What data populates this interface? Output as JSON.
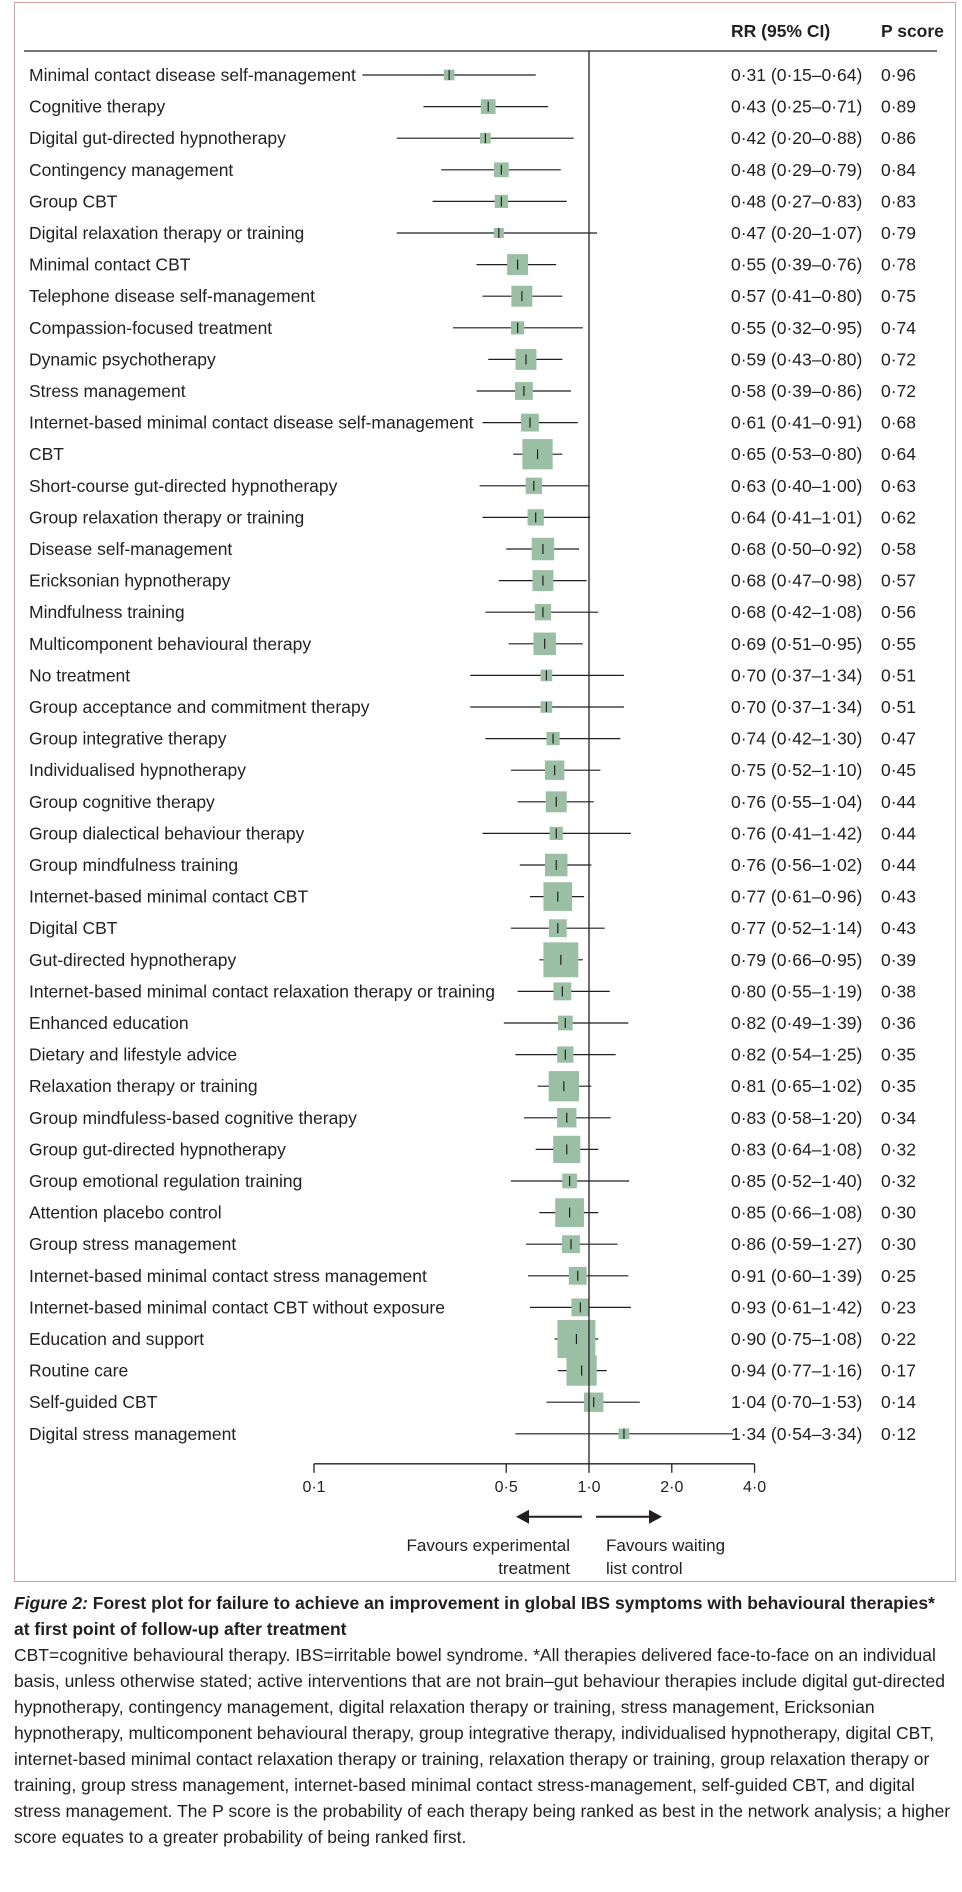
{
  "header": {
    "rr_label": "RR (95% CI)",
    "p_label": "P score"
  },
  "chart_data": {
    "type": "forest",
    "x_scale": "log",
    "reference_line": 1.0,
    "xticks": [
      {
        "value": 0.1,
        "label": "0·1"
      },
      {
        "value": 0.5,
        "label": "0·5"
      },
      {
        "value": 1.0,
        "label": "1·0"
      },
      {
        "value": 2.0,
        "label": "2·0"
      },
      {
        "value": 4.0,
        "label": "4·0"
      }
    ],
    "marker_color": "#9bbfa4",
    "favours_left": [
      "Favours experimental",
      "treatment"
    ],
    "favours_right": [
      "Favours waiting",
      "list control"
    ],
    "rows": [
      {
        "name": "Minimal contact disease self-management",
        "rr": 0.31,
        "lo": 0.15,
        "hi": 0.64,
        "rr_text": "0·31 (0·15–0·64)",
        "p_text": "0·96",
        "weight": 0.12
      },
      {
        "name": "Cognitive therapy",
        "rr": 0.43,
        "lo": 0.25,
        "hi": 0.71,
        "rr_text": "0·43 (0·25–0·71)",
        "p_text": "0·89",
        "weight": 0.25
      },
      {
        "name": "Digital gut-directed hypnotherapy",
        "rr": 0.42,
        "lo": 0.2,
        "hi": 0.88,
        "rr_text": "0·42 (0·20–0·88)",
        "p_text": "0·86",
        "weight": 0.12
      },
      {
        "name": "Contingency management",
        "rr": 0.48,
        "lo": 0.29,
        "hi": 0.79,
        "rr_text": "0·48 (0·29–0·79)",
        "p_text": "0·84",
        "weight": 0.25
      },
      {
        "name": "Group CBT",
        "rr": 0.48,
        "lo": 0.27,
        "hi": 0.83,
        "rr_text": "0·48 (0·27–0·83)",
        "p_text": "0·83",
        "weight": 0.2
      },
      {
        "name": "Digital relaxation therapy or training",
        "rr": 0.47,
        "lo": 0.2,
        "hi": 1.07,
        "rr_text": "0·47 (0·20–1·07)",
        "p_text": "0·79",
        "weight": 0.1
      },
      {
        "name": "Minimal contact CBT",
        "rr": 0.55,
        "lo": 0.39,
        "hi": 0.76,
        "rr_text": "0·55 (0·39–0·76)",
        "p_text": "0·78",
        "weight": 0.45
      },
      {
        "name": "Telephone disease self-management",
        "rr": 0.57,
        "lo": 0.41,
        "hi": 0.8,
        "rr_text": "0·57 (0·41–0·80)",
        "p_text": "0·75",
        "weight": 0.45
      },
      {
        "name": "Compassion-focused treatment",
        "rr": 0.55,
        "lo": 0.32,
        "hi": 0.95,
        "rr_text": "0·55 (0·32–0·95)",
        "p_text": "0·74",
        "weight": 0.2
      },
      {
        "name": "Dynamic psychotherapy",
        "rr": 0.59,
        "lo": 0.43,
        "hi": 0.8,
        "rr_text": "0·59 (0·43–0·80)",
        "p_text": "0·72",
        "weight": 0.45
      },
      {
        "name": "Stress management",
        "rr": 0.58,
        "lo": 0.39,
        "hi": 0.86,
        "rr_text": "0·58 (0·39–0·86)",
        "p_text": "0·72",
        "weight": 0.35
      },
      {
        "name": "Internet-based minimal contact disease self-management",
        "rr": 0.61,
        "lo": 0.41,
        "hi": 0.91,
        "rr_text": "0·61 (0·41–0·91)",
        "p_text": "0·68",
        "weight": 0.35
      },
      {
        "name": "CBT",
        "rr": 0.65,
        "lo": 0.53,
        "hi": 0.8,
        "rr_text": "0·65 (0·53–0·80)",
        "p_text": "0·64",
        "weight": 0.75
      },
      {
        "name": "Short-course gut-directed hypnotherapy",
        "rr": 0.63,
        "lo": 0.4,
        "hi": 1.0,
        "rr_text": "0·63 (0·40–1·00)",
        "p_text": "0·63",
        "weight": 0.3
      },
      {
        "name": "Group relaxation therapy or training",
        "rr": 0.64,
        "lo": 0.41,
        "hi": 1.01,
        "rr_text": "0·64 (0·41–1·01)",
        "p_text": "0·62",
        "weight": 0.3
      },
      {
        "name": "Disease self-management",
        "rr": 0.68,
        "lo": 0.5,
        "hi": 0.92,
        "rr_text": "0·68 (0·50–0·92)",
        "p_text": "0·58",
        "weight": 0.5
      },
      {
        "name": "Ericksonian hypnotherapy",
        "rr": 0.68,
        "lo": 0.47,
        "hi": 0.98,
        "rr_text": "0·68 (0·47–0·98)",
        "p_text": "0·57",
        "weight": 0.45
      },
      {
        "name": "Mindfulness training",
        "rr": 0.68,
        "lo": 0.42,
        "hi": 1.08,
        "rr_text": "0·68 (0·42–1·08)",
        "p_text": "0·56",
        "weight": 0.3
      },
      {
        "name": "Multicomponent behavioural therapy",
        "rr": 0.69,
        "lo": 0.51,
        "hi": 0.95,
        "rr_text": "0·69 (0·51–0·95)",
        "p_text": "0·55",
        "weight": 0.5
      },
      {
        "name": "No treatment",
        "rr": 0.7,
        "lo": 0.37,
        "hi": 1.34,
        "rr_text": "0·70 (0·37–1·34)",
        "p_text": "0·51",
        "weight": 0.15
      },
      {
        "name": "Group acceptance and commitment therapy",
        "rr": 0.7,
        "lo": 0.37,
        "hi": 1.34,
        "rr_text": "0·70 (0·37–1·34)",
        "p_text": "0·51",
        "weight": 0.15
      },
      {
        "name": "Group integrative therapy",
        "rr": 0.74,
        "lo": 0.42,
        "hi": 1.3,
        "rr_text": "0·74 (0·42–1·30)",
        "p_text": "0·47",
        "weight": 0.2
      },
      {
        "name": "Individualised hypnotherapy",
        "rr": 0.75,
        "lo": 0.52,
        "hi": 1.1,
        "rr_text": "0·75 (0·52–1·10)",
        "p_text": "0·45",
        "weight": 0.4
      },
      {
        "name": "Group cognitive therapy",
        "rr": 0.76,
        "lo": 0.55,
        "hi": 1.04,
        "rr_text": "0·76 (0·55–1·04)",
        "p_text": "0·44",
        "weight": 0.45
      },
      {
        "name": "Group dialectical behaviour therapy",
        "rr": 0.76,
        "lo": 0.41,
        "hi": 1.42,
        "rr_text": "0·76 (0·41–1·42)",
        "p_text": "0·44",
        "weight": 0.2
      },
      {
        "name": "Group mindfulness training",
        "rr": 0.76,
        "lo": 0.56,
        "hi": 1.02,
        "rr_text": "0·76 (0·56–1·02)",
        "p_text": "0·44",
        "weight": 0.5
      },
      {
        "name": "Internet-based minimal contact CBT",
        "rr": 0.77,
        "lo": 0.61,
        "hi": 0.96,
        "rr_text": "0·77 (0·61–0·96)",
        "p_text": "0·43",
        "weight": 0.7
      },
      {
        "name": "Digital CBT",
        "rr": 0.77,
        "lo": 0.52,
        "hi": 1.14,
        "rr_text": "0·77 (0·52–1·14)",
        "p_text": "0·43",
        "weight": 0.35
      },
      {
        "name": "Gut-directed hypnotherapy",
        "rr": 0.79,
        "lo": 0.66,
        "hi": 0.95,
        "rr_text": "0·79 (0·66–0·95)",
        "p_text": "0·39",
        "weight": 0.9
      },
      {
        "name": "Internet-based minimal contact relaxation therapy or training",
        "rr": 0.8,
        "lo": 0.55,
        "hi": 1.19,
        "rr_text": "0·80 (0·55–1·19)",
        "p_text": "0·38",
        "weight": 0.35
      },
      {
        "name": "Enhanced education",
        "rr": 0.82,
        "lo": 0.49,
        "hi": 1.39,
        "rr_text": "0·82 (0·49–1·39)",
        "p_text": "0·36",
        "weight": 0.25
      },
      {
        "name": "Dietary and lifestyle advice",
        "rr": 0.82,
        "lo": 0.54,
        "hi": 1.25,
        "rr_text": "0·82 (0·54–1·25)",
        "p_text": "0·35",
        "weight": 0.3
      },
      {
        "name": "Relaxation therapy or training",
        "rr": 0.81,
        "lo": 0.65,
        "hi": 1.02,
        "rr_text": "0·81 (0·65–1·02)",
        "p_text": "0·35",
        "weight": 0.75
      },
      {
        "name": "Group mindfuless-based cognitive therapy",
        "rr": 0.83,
        "lo": 0.58,
        "hi": 1.2,
        "rr_text": "0·83 (0·58–1·20)",
        "p_text": "0·34",
        "weight": 0.4
      },
      {
        "name": "Group gut-directed hypnotherapy",
        "rr": 0.83,
        "lo": 0.64,
        "hi": 1.08,
        "rr_text": "0·83 (0·64–1·08)",
        "p_text": "0·32",
        "weight": 0.65
      },
      {
        "name": "Group emotional regulation training",
        "rr": 0.85,
        "lo": 0.52,
        "hi": 1.4,
        "rr_text": "0·85 (0·52–1·40)",
        "p_text": "0·32",
        "weight": 0.25
      },
      {
        "name": "Attention placebo control",
        "rr": 0.85,
        "lo": 0.66,
        "hi": 1.08,
        "rr_text": "0·85 (0·66–1·08)",
        "p_text": "0·30",
        "weight": 0.7
      },
      {
        "name": "Group stress management",
        "rr": 0.86,
        "lo": 0.59,
        "hi": 1.27,
        "rr_text": "0·86 (0·59–1·27)",
        "p_text": "0·30",
        "weight": 0.35
      },
      {
        "name": "Internet-based minimal contact stress management",
        "rr": 0.91,
        "lo": 0.6,
        "hi": 1.39,
        "rr_text": "0·91 (0·60–1·39)",
        "p_text": "0·25",
        "weight": 0.35
      },
      {
        "name": "Internet-based minimal contact CBT without exposure",
        "rr": 0.93,
        "lo": 0.61,
        "hi": 1.42,
        "rr_text": "0·93 (0·61–1·42)",
        "p_text": "0·23",
        "weight": 0.35
      },
      {
        "name": "Education and support",
        "rr": 0.9,
        "lo": 0.75,
        "hi": 1.08,
        "rr_text": "0·90 (0·75–1·08)",
        "p_text": "0·22",
        "weight": 1.0
      },
      {
        "name": "Routine care",
        "rr": 0.94,
        "lo": 0.77,
        "hi": 1.16,
        "rr_text": "0·94 (0·77–1·16)",
        "p_text": "0·17",
        "weight": 0.75
      },
      {
        "name": "Self-guided CBT",
        "rr": 1.04,
        "lo": 0.7,
        "hi": 1.53,
        "rr_text": "1·04 (0·70–1·53)",
        "p_text": "0·14",
        "weight": 0.4
      },
      {
        "name": "Digital stress management",
        "rr": 1.34,
        "lo": 0.54,
        "hi": 3.34,
        "rr_text": "1·34 (0·54–3·34)",
        "p_text": "0·12",
        "weight": 0.12
      }
    ]
  },
  "caption": {
    "figure_label": "Figure 2:",
    "title": "Forest plot for failure to achieve an improvement in global IBS symptoms with behavioural therapies* at first point of follow-up after treatment",
    "notes": "CBT=cognitive behavioural therapy. IBS=irritable bowel syndrome. *All therapies delivered face-to-face on an individual basis, unless otherwise stated; active interventions that are not brain–gut behaviour therapies include digital gut-directed hypnotherapy, contingency management, digital relaxation therapy or training, stress management, Ericksonian hypnotherapy, multicomponent behavioural therapy, group integrative therapy, individualised hypnotherapy, digital CBT, internet-based minimal contact relaxation therapy or training, relaxation therapy or training, group relaxation therapy or training, group stress management, internet-based minimal contact stress-management, self-guided CBT, and digital stress management. The P score is the probability of each therapy being ranked as best in the network analysis; a higher score equates to a greater probability of being ranked first."
  }
}
